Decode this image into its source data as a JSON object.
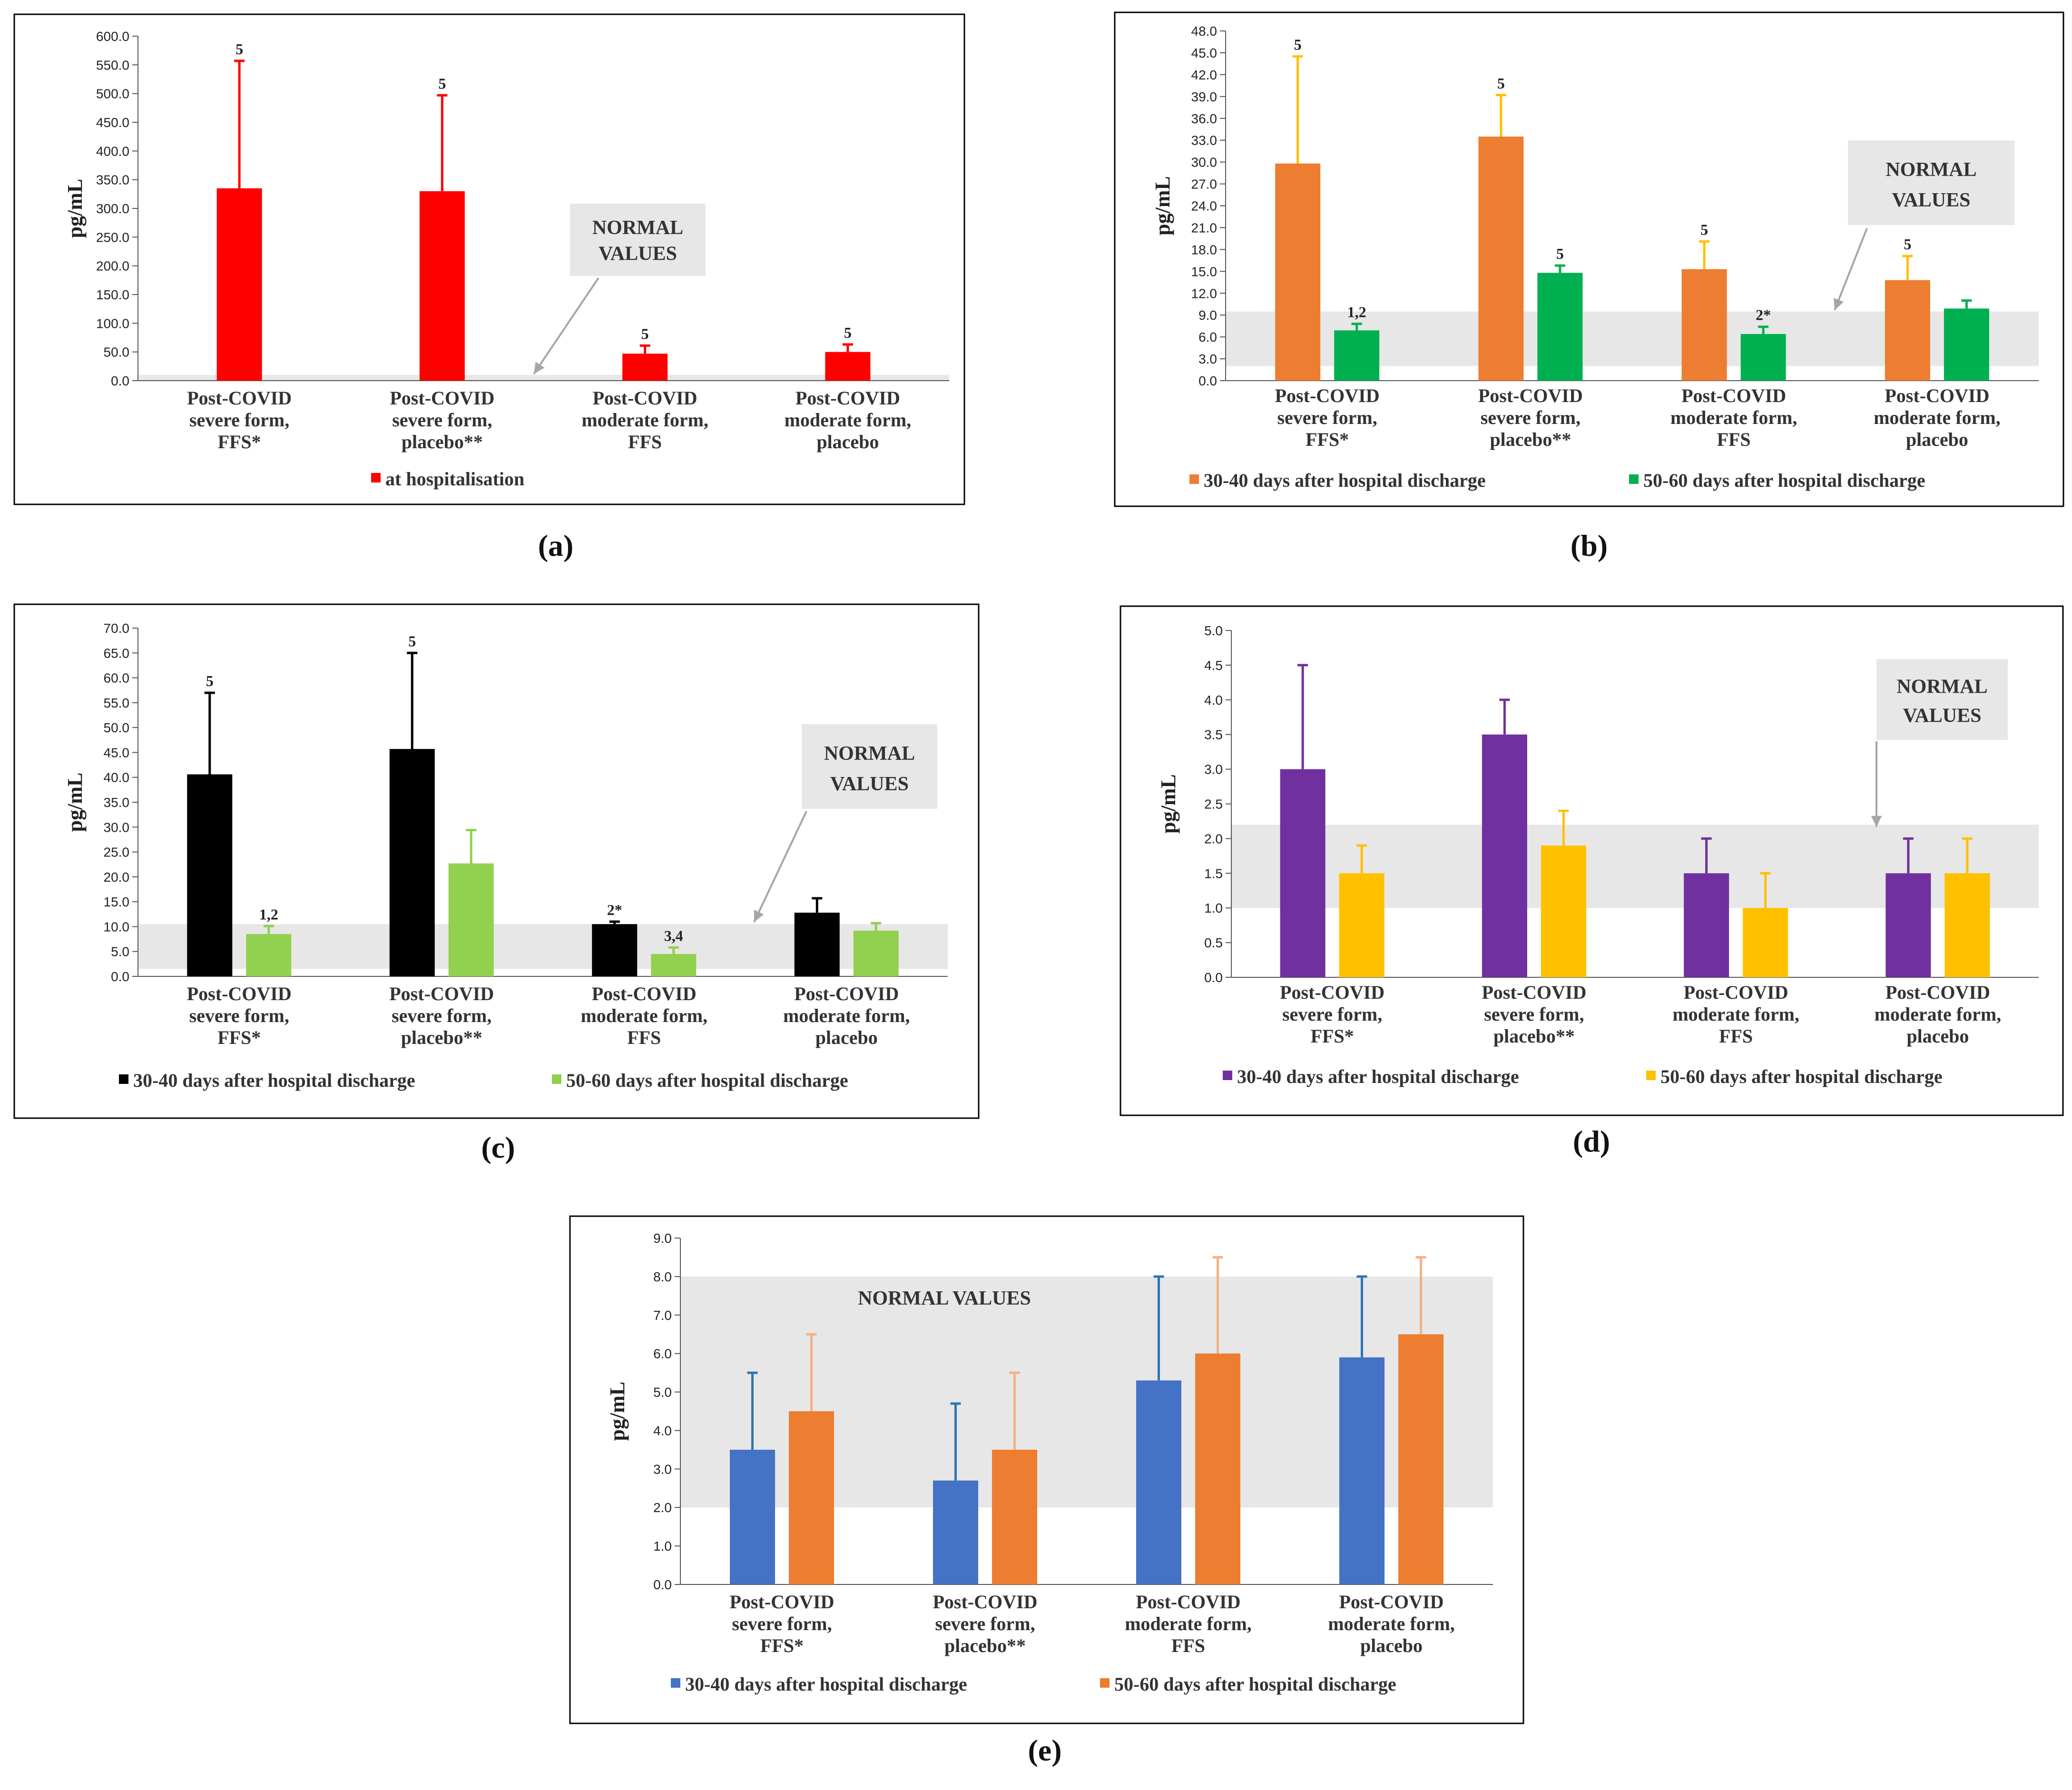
{
  "colors": {
    "red": "#ff0000",
    "orange": "#ed7d31",
    "green": "#00b050",
    "gold": "#ffc000",
    "black": "#000000",
    "lightgreen": "#92d050",
    "purple": "#7030a0",
    "yellow": "#ffc000",
    "blue": "#4472c4",
    "lightorange": "#f4b183",
    "normal_band": "#e7e7e7",
    "normal_box": "#e7e7e7",
    "arrow": "#a6a6a6"
  },
  "chart_data": [
    {
      "panel_label": "(a)",
      "type": "bar",
      "ylabel": "pg/mL",
      "ylim": [
        0,
        600
      ],
      "ytick_step": 50,
      "ytick_decimals": 1,
      "categories": [
        [
          "Post-COVID",
          "severe form,",
          "FFS*"
        ],
        [
          "Post-COVID",
          "severe form,",
          "placebo**"
        ],
        [
          "Post-COVID",
          "moderate form,",
          "FFS"
        ],
        [
          "Post-COVID",
          "moderate form,",
          "placebo"
        ]
      ],
      "series": [
        {
          "name": "at hospitalisation",
          "color": "#ff0000",
          "error_color": "#ff0000",
          "values": [
            335,
            330,
            47,
            50
          ],
          "error_top": [
            557,
            497,
            61,
            63
          ],
          "annotations": [
            "5",
            "5",
            "5",
            "5"
          ]
        }
      ],
      "normal_range": [
        0,
        10
      ],
      "normal_label": [
        "NORMAL",
        "VALUES"
      ]
    },
    {
      "panel_label": "(b)",
      "type": "bar",
      "ylabel": "pg/mL",
      "ylim": [
        0,
        48
      ],
      "ytick_step": 3,
      "ytick_decimals": 1,
      "categories": [
        [
          "Post-COVID",
          "severe form,",
          "FFS*"
        ],
        [
          "Post-COVID",
          "severe form,",
          "placebo**"
        ],
        [
          "Post-COVID",
          "moderate form,",
          "FFS"
        ],
        [
          "Post-COVID",
          "moderate form,",
          "placebo"
        ]
      ],
      "series": [
        {
          "name": "30-40 days after hospital discharge",
          "color": "#ed7d31",
          "error_color": "#ffc000",
          "values": [
            29.8,
            33.5,
            15.3,
            13.8
          ],
          "error_top": [
            44.5,
            39.2,
            19.1,
            17.1
          ],
          "annotations": [
            "5",
            "5",
            "5",
            "5"
          ]
        },
        {
          "name": "50-60 days after hospital discharge",
          "color": "#00b050",
          "error_color": "#00b050",
          "values": [
            6.9,
            14.8,
            6.4,
            9.9
          ],
          "error_top": [
            7.8,
            15.8,
            7.4,
            11.0
          ],
          "annotations": [
            "1,2",
            "5",
            "2*",
            ""
          ]
        }
      ],
      "normal_range": [
        2,
        9.5
      ],
      "normal_label": [
        "NORMAL",
        "VALUES"
      ]
    },
    {
      "panel_label": "(c)",
      "type": "bar",
      "ylabel": "pg/mL",
      "ylim": [
        0,
        70
      ],
      "ytick_step": 5,
      "ytick_decimals": 1,
      "categories": [
        [
          "Post-COVID",
          "severe form,",
          "FFS*"
        ],
        [
          "Post-COVID",
          "severe form,",
          "placebo**"
        ],
        [
          "Post-COVID",
          "moderate form,",
          "FFS"
        ],
        [
          "Post-COVID",
          "moderate form,",
          "placebo"
        ]
      ],
      "series": [
        {
          "name": "30-40 days after hospital discharge",
          "color": "#000000",
          "error_color": "#000000",
          "values": [
            40.6,
            45.7,
            10.5,
            12.8
          ],
          "error_top": [
            57.0,
            65.0,
            11.0,
            15.7
          ],
          "annotations": [
            "5",
            "5",
            "2*",
            ""
          ]
        },
        {
          "name": "50-60 days after hospital discharge",
          "color": "#92d050",
          "error_color": "#92d050",
          "values": [
            8.5,
            22.7,
            4.5,
            9.2
          ],
          "error_top": [
            10.1,
            29.4,
            5.8,
            10.7
          ],
          "annotations": [
            "1,2",
            "",
            "3,4",
            ""
          ]
        }
      ],
      "normal_range": [
        1.5,
        10.5
      ],
      "normal_label": [
        "NORMAL",
        "VALUES"
      ]
    },
    {
      "panel_label": "(d)",
      "type": "bar",
      "ylabel": "pg/mL",
      "ylim": [
        0,
        5
      ],
      "ytick_step": 0.5,
      "ytick_decimals": 1,
      "categories": [
        [
          "Post-COVID",
          "severe form,",
          "FFS*"
        ],
        [
          "Post-COVID",
          "severe form,",
          "placebo**"
        ],
        [
          "Post-COVID",
          "moderate form,",
          "FFS"
        ],
        [
          "Post-COVID",
          "moderate form,",
          "placebo"
        ]
      ],
      "series": [
        {
          "name": "30-40 days after hospital discharge",
          "color": "#7030a0",
          "error_color": "#7030a0",
          "values": [
            3.0,
            3.5,
            1.5,
            1.5
          ],
          "error_top": [
            4.5,
            4.0,
            2.0,
            2.0
          ],
          "annotations": [
            "",
            "",
            "",
            ""
          ]
        },
        {
          "name": "50-60 days after hospital discharge",
          "color": "#ffc000",
          "error_color": "#ffc000",
          "values": [
            1.5,
            1.9,
            1.0,
            1.5
          ],
          "error_top": [
            1.9,
            2.4,
            1.5,
            2.0
          ],
          "annotations": [
            "",
            "",
            "",
            ""
          ]
        }
      ],
      "normal_range": [
        1.0,
        2.2
      ],
      "normal_label": [
        "NORMAL",
        "VALUES"
      ]
    },
    {
      "panel_label": "(e)",
      "type": "bar",
      "ylabel": "pg/mL",
      "ylim": [
        0,
        9
      ],
      "ytick_step": 1,
      "ytick_decimals": 1,
      "categories": [
        [
          "Post-COVID",
          "severe form,",
          "FFS*"
        ],
        [
          "Post-COVID",
          "severe form,",
          "placebo**"
        ],
        [
          "Post-COVID",
          "moderate form,",
          "FFS"
        ],
        [
          "Post-COVID",
          "moderate form,",
          "placebo"
        ]
      ],
      "series": [
        {
          "name": "30-40 days after hospital discharge",
          "color": "#4472c4",
          "error_color": "#2e75b6",
          "values": [
            3.5,
            2.7,
            5.3,
            5.9
          ],
          "error_top": [
            5.5,
            4.7,
            8.0,
            8.0
          ],
          "annotations": [
            "",
            "",
            "",
            ""
          ]
        },
        {
          "name": "50-60 days after hospital discharge",
          "color": "#ed7d31",
          "error_color": "#f4b183",
          "values": [
            4.5,
            3.5,
            6.0,
            6.5
          ],
          "error_top": [
            6.5,
            5.5,
            8.5,
            8.5
          ],
          "annotations": [
            "",
            "",
            "",
            ""
          ]
        }
      ],
      "normal_range": [
        2,
        8
      ],
      "normal_label": [
        "NORMAL VALUES"
      ]
    }
  ]
}
